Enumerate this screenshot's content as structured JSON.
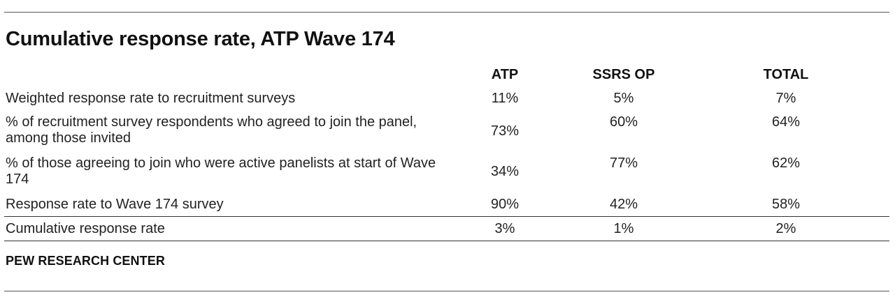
{
  "title": "Cumulative response rate, ATP Wave 174",
  "columns": {
    "atp": "ATP",
    "ssrs": "SSRS OP",
    "total": "TOTAL"
  },
  "rows": [
    {
      "label": "Weighted response rate to recruitment surveys",
      "atp": "11%",
      "ssrs": "5%",
      "total": "7%"
    },
    {
      "label": "% of recruitment survey respondents who agreed to join the panel, among those invited",
      "atp": "73%",
      "ssrs": "60%",
      "total": "64%"
    },
    {
      "label": "% of those agreeing to join who were active panelists at start of Wave 174",
      "atp": "34%",
      "ssrs": "77%",
      "total": "62%"
    },
    {
      "label": "Response rate to Wave 174 survey",
      "atp": "90%",
      "ssrs": "42%",
      "total": "58%"
    },
    {
      "label": "Cumulative response rate",
      "atp": "3%",
      "ssrs": "1%",
      "total": "2%"
    }
  ],
  "source": "PEW RESEARCH CENTER"
}
